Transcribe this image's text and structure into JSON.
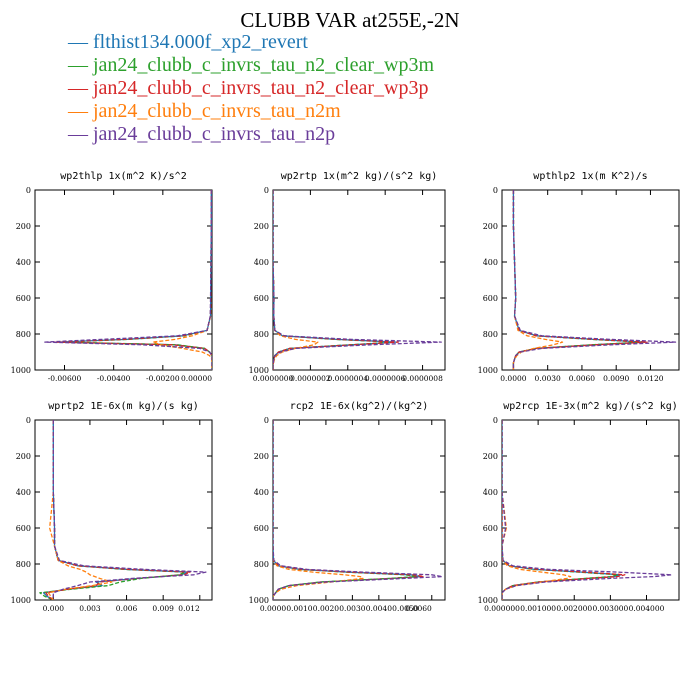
{
  "title": "CLUBB VAR at255E,-2N",
  "legend": [
    {
      "label": "flthist134.000f_xp2_revert",
      "color": "#1f77b4"
    },
    {
      "label": "jan24_clubb_c_invrs_tau_n2_clear_wp3m",
      "color": "#2ca02c"
    },
    {
      "label": "jan24_clubb_c_invrs_tau_n2_clear_wp3p",
      "color": "#d62728"
    },
    {
      "label": "jan24_clubb_c_invrs_tau_n2m",
      "color": "#ff7f0e"
    },
    {
      "label": "jan24_clubb_c_invrs_tau_n2p",
      "color": "#6a3d9a"
    }
  ],
  "chart_data": [
    {
      "type": "line",
      "title": "wp2thlp  1x(m^2 K)/s^2",
      "xlim": [
        -0.0072,
        0.0
      ],
      "xticks": [
        -0.006,
        -0.004,
        -0.002,
        0.0
      ],
      "xtick_labels": [
        "-0.00600",
        "-0.00400",
        "-0.00200",
        "0.00000"
      ],
      "ylim": [
        1000,
        0
      ],
      "yticks": [
        0,
        200,
        400,
        600,
        800,
        1000
      ],
      "y": [
        0,
        200,
        400,
        600,
        700,
        780,
        810,
        830,
        845,
        860,
        880,
        900,
        920,
        940,
        960,
        980,
        1000
      ],
      "series": [
        {
          "color": "#1f77b4",
          "values": [
            -3e-05,
            -3e-05,
            -4e-05,
            -5e-05,
            -6e-05,
            -0.0002,
            -0.0012,
            -0.0035,
            -0.0063,
            -0.0015,
            -0.0003,
            -0.0001,
            0,
            0,
            0,
            0,
            0
          ]
        },
        {
          "color": "#2ca02c",
          "values": [
            -3e-05,
            -3e-05,
            -4e-05,
            -5e-05,
            -6e-05,
            -0.0002,
            -0.0011,
            -0.0034,
            -0.0061,
            -0.0014,
            -0.0003,
            -0.0001,
            0,
            0,
            0,
            0,
            0
          ]
        },
        {
          "color": "#d62728",
          "values": [
            -3e-05,
            -3e-05,
            -4e-05,
            -5e-05,
            -6e-05,
            -0.0002,
            -0.0012,
            -0.0036,
            -0.0064,
            -0.0016,
            -0.0003,
            -0.0001,
            0,
            0,
            0,
            0,
            0
          ]
        },
        {
          "color": "#ff7f0e",
          "values": [
            -3e-05,
            -3e-05,
            -4e-05,
            -5e-05,
            -6e-05,
            -0.0002,
            -0.0008,
            -0.0015,
            -0.0024,
            -0.0021,
            -0.0012,
            -0.0004,
            -0.0001,
            0,
            0,
            0,
            0
          ]
        },
        {
          "color": "#6a3d9a",
          "values": [
            -3e-05,
            -3e-05,
            -4e-05,
            -6e-05,
            -7e-05,
            -0.0002,
            -0.0014,
            -0.0045,
            -0.0068,
            -0.0028,
            -0.0005,
            -0.0001,
            0,
            0,
            0,
            0,
            0
          ]
        }
      ]
    },
    {
      "type": "line",
      "title": "wp2rtp  1x(m^2 kg)/(s^2 kg)",
      "xlim": [
        0,
        9.2e-07
      ],
      "xticks": [
        0,
        2e-07,
        4e-07,
        6e-07,
        8e-07
      ],
      "xtick_labels": [
        "0.0000000",
        "0.0000002",
        "0.0000004",
        "0.0000006",
        "0.0000008"
      ],
      "ylim": [
        1000,
        0
      ],
      "yticks": [
        0,
        200,
        400,
        600,
        800,
        1000
      ],
      "y": [
        0,
        200,
        400,
        600,
        700,
        780,
        810,
        830,
        845,
        860,
        880,
        900,
        920,
        940,
        960,
        980,
        1000
      ],
      "series": [
        {
          "color": "#1f77b4",
          "values": [
            0,
            0,
            0,
            5e-09,
            4e-09,
            1e-08,
            5e-08,
            3.4e-07,
            6.6e-07,
            4.2e-07,
            9e-08,
            3e-08,
            1e-08,
            5e-09,
            2e-09,
            0,
            0
          ]
        },
        {
          "color": "#2ca02c",
          "values": [
            0,
            0,
            0,
            5e-09,
            4e-09,
            1e-08,
            5e-08,
            3.3e-07,
            6.4e-07,
            4.1e-07,
            9e-08,
            3e-08,
            1e-08,
            5e-09,
            2e-09,
            0,
            0
          ]
        },
        {
          "color": "#d62728",
          "values": [
            0,
            0,
            0,
            5e-09,
            4e-09,
            1e-08,
            5e-08,
            3.5e-07,
            6.7e-07,
            4.3e-07,
            9e-08,
            3e-08,
            1e-08,
            5e-09,
            2e-09,
            0,
            0
          ]
        },
        {
          "color": "#ff7f0e",
          "values": [
            0,
            0,
            0,
            5e-09,
            4e-09,
            1e-08,
            4e-08,
            1.2e-07,
            2.4e-07,
            2.2e-07,
            1.2e-07,
            5e-08,
            2e-08,
            8e-09,
            3e-09,
            0,
            0
          ]
        },
        {
          "color": "#6a3d9a",
          "values": [
            0,
            0,
            0,
            5e-09,
            4e-09,
            1e-08,
            6e-08,
            4.2e-07,
            9e-07,
            5.2e-07,
            1.2e-07,
            4e-08,
            1e-08,
            5e-09,
            2e-09,
            0,
            0
          ]
        }
      ]
    },
    {
      "type": "line",
      "title": "wpthlp2  1x(m K^2)/s",
      "xlim": [
        -0.001,
        0.0145
      ],
      "xticks": [
        0,
        0.003,
        0.006,
        0.009,
        0.012
      ],
      "xtick_labels": [
        "0.0000",
        "0.0030",
        "0.0060",
        "0.0090",
        "0.0120"
      ],
      "ylim": [
        1000,
        0
      ],
      "yticks": [
        0,
        200,
        400,
        600,
        800,
        1000
      ],
      "y": [
        0,
        200,
        400,
        600,
        700,
        780,
        810,
        830,
        845,
        860,
        880,
        900,
        920,
        940,
        960,
        980,
        1000
      ],
      "series": [
        {
          "color": "#1f77b4",
          "values": [
            0,
            0,
            0.0001,
            0.0002,
            0.0001,
            0.0005,
            0.002,
            0.007,
            0.0115,
            0.007,
            0.002,
            0.0005,
            0.0002,
            0.0001,
            0,
            0,
            0
          ]
        },
        {
          "color": "#2ca02c",
          "values": [
            0,
            0,
            0.0001,
            0.0002,
            0.0001,
            0.0005,
            0.002,
            0.0068,
            0.0113,
            0.0068,
            0.002,
            0.0005,
            0.0002,
            0.0001,
            0,
            0,
            0
          ]
        },
        {
          "color": "#d62728",
          "values": [
            0,
            0,
            0.0001,
            0.0002,
            0.0001,
            0.0005,
            0.002,
            0.0072,
            0.0117,
            0.0072,
            0.002,
            0.0005,
            0.0002,
            0.0001,
            0,
            0,
            0
          ]
        },
        {
          "color": "#ff7f0e",
          "values": [
            0,
            0,
            0.0001,
            0.0002,
            0.0001,
            0.0004,
            0.0012,
            0.0028,
            0.0043,
            0.0035,
            0.0018,
            0.0007,
            0.0003,
            0.0001,
            0,
            0,
            0
          ]
        },
        {
          "color": "#6a3d9a",
          "values": [
            0,
            0,
            0.0001,
            0.0002,
            0.0001,
            0.0006,
            0.0025,
            0.0085,
            0.0142,
            0.0085,
            0.0025,
            0.0006,
            0.0002,
            0.0001,
            0,
            0,
            0
          ]
        }
      ]
    },
    {
      "type": "line",
      "title": "wprtp2  1E-6x(m kg)/(s kg)",
      "xlim": [
        -0.0015,
        0.013
      ],
      "xticks": [
        0,
        0.003,
        0.006,
        0.009,
        0.012
      ],
      "xtick_labels": [
        "0.000",
        "0.003",
        "0.006",
        "0.009",
        "0.012"
      ],
      "ylim": [
        1000,
        0
      ],
      "yticks": [
        0,
        200,
        400,
        600,
        800,
        1000
      ],
      "y": [
        0,
        200,
        400,
        600,
        700,
        780,
        810,
        830,
        845,
        860,
        880,
        900,
        920,
        940,
        960,
        980,
        1000
      ],
      "series": [
        {
          "color": "#1f77b4",
          "values": [
            0,
            0,
            0,
            0.0001,
            0.0001,
            0.0004,
            0.002,
            0.006,
            0.011,
            0.0105,
            0.007,
            0.0035,
            0.004,
            0.0012,
            -0.0008,
            -0.0005,
            0
          ]
        },
        {
          "color": "#2ca02c",
          "values": [
            0,
            0,
            0,
            0.0001,
            0.0001,
            0.0004,
            0.002,
            0.0058,
            0.0108,
            0.0103,
            0.0072,
            0.0055,
            0.0045,
            0.0015,
            -0.0011,
            -0.0007,
            0
          ]
        },
        {
          "color": "#d62728",
          "values": [
            0,
            0,
            0,
            0.0001,
            0.0001,
            0.0004,
            0.002,
            0.0062,
            0.0112,
            0.0107,
            0.0068,
            0.0038,
            0.0035,
            0.0012,
            -0.0006,
            -0.0004,
            0
          ]
        },
        {
          "color": "#ff7f0e",
          "values": [
            0,
            0,
            0,
            -0.0003,
            0.0001,
            0.0004,
            0.0012,
            0.0022,
            0.0027,
            0.003,
            0.0038,
            0.0048,
            0.0032,
            0.001,
            -0.0004,
            -0.0002,
            0
          ]
        },
        {
          "color": "#6a3d9a",
          "values": [
            0,
            0,
            0,
            0.0001,
            0.0001,
            0.0005,
            0.0025,
            0.0075,
            0.0125,
            0.0115,
            0.0065,
            0.003,
            0.002,
            0.0008,
            0,
            0,
            0
          ]
        }
      ]
    },
    {
      "type": "line",
      "title": "rcp2  1E-6x(kg^2)/(kg^2)",
      "xlim": [
        0,
        0.0065
      ],
      "xticks": [
        0,
        0.001,
        0.002,
        0.003,
        0.004,
        0.005,
        0.006
      ],
      "xtick_labels": [
        "0.0000",
        "0.0010",
        "0.0020",
        "0.0030",
        "0.0040",
        "0.0050",
        "0.0060"
      ],
      "ylim": [
        1000,
        0
      ],
      "yticks": [
        0,
        200,
        400,
        600,
        800,
        1000
      ],
      "y": [
        0,
        200,
        400,
        600,
        700,
        780,
        810,
        830,
        845,
        860,
        870,
        880,
        900,
        920,
        940,
        960,
        980,
        1000
      ],
      "series": [
        {
          "color": "#1f77b4",
          "values": [
            0,
            0,
            0,
            0,
            0,
            2e-05,
            0.0002,
            0.001,
            0.0028,
            0.0052,
            0.0056,
            0.0045,
            0.0018,
            0.0006,
            0.0002,
            0.0001,
            0,
            0
          ]
        },
        {
          "color": "#2ca02c",
          "values": [
            0,
            0,
            0,
            0,
            0,
            2e-05,
            0.0002,
            0.001,
            0.0027,
            0.005,
            0.0054,
            0.0044,
            0.0018,
            0.0006,
            0.0002,
            0.0001,
            0,
            0
          ]
        },
        {
          "color": "#d62728",
          "values": [
            0,
            0,
            0,
            0,
            0,
            2e-05,
            0.0002,
            0.0011,
            0.0029,
            0.0053,
            0.0057,
            0.0046,
            0.0019,
            0.0006,
            0.0002,
            0.0001,
            0,
            0
          ]
        },
        {
          "color": "#ff7f0e",
          "values": [
            0,
            0,
            0,
            0,
            0,
            2e-05,
            0.00015,
            0.0006,
            0.0015,
            0.0027,
            0.0033,
            0.0034,
            0.0022,
            0.0009,
            0.0003,
            0.0001,
            0,
            0
          ]
        },
        {
          "color": "#6a3d9a",
          "values": [
            0,
            0,
            0,
            0,
            0,
            3e-05,
            0.0003,
            0.0013,
            0.0034,
            0.006,
            0.0064,
            0.005,
            0.002,
            0.0006,
            0.0002,
            0.0001,
            0,
            0
          ]
        }
      ]
    },
    {
      "type": "line",
      "title": "wp2rcp  1E-3x(m^2 kg)/(s^2 kg)",
      "xlim": [
        0,
        0.0049
      ],
      "xticks": [
        0,
        0.001,
        0.002,
        0.003,
        0.004
      ],
      "xtick_labels": [
        "0.000000",
        "0.001000",
        "0.002000",
        "0.003000",
        "0.004000"
      ],
      "ylim": [
        1000,
        0
      ],
      "yticks": [
        0,
        200,
        400,
        600,
        800,
        1000
      ],
      "y": [
        0,
        200,
        400,
        600,
        700,
        780,
        810,
        830,
        845,
        860,
        870,
        880,
        900,
        920,
        940,
        960,
        980,
        1000
      ],
      "series": [
        {
          "color": "#1f77b4",
          "values": [
            0,
            0,
            0,
            0,
            0,
            2e-05,
            0.0002,
            0.0009,
            0.0022,
            0.0033,
            0.0031,
            0.0024,
            0.001,
            0.0003,
            0.0001,
            0,
            0,
            0
          ]
        },
        {
          "color": "#2ca02c",
          "values": [
            0,
            0,
            0,
            0,
            0,
            2e-05,
            0.0002,
            0.0009,
            0.0021,
            0.0032,
            0.003,
            0.0023,
            0.001,
            0.0003,
            0.0001,
            0,
            0,
            0
          ]
        },
        {
          "color": "#d62728",
          "values": [
            0,
            0,
            0,
            0,
            0,
            2e-05,
            0.0002,
            0.001,
            0.0023,
            0.0034,
            0.0032,
            0.0024,
            0.001,
            0.0003,
            0.0001,
            0,
            0,
            0
          ]
        },
        {
          "color": "#ff7f0e",
          "values": [
            0,
            0,
            0,
            0.00012,
            0,
            2e-05,
            0.00015,
            0.0005,
            0.0011,
            0.0017,
            0.0019,
            0.0018,
            0.0011,
            0.0004,
            0.0001,
            0,
            0,
            0
          ]
        },
        {
          "color": "#6a3d9a",
          "values": [
            0,
            0,
            0,
            0.0001,
            0,
            3e-05,
            0.0003,
            0.0013,
            0.0032,
            0.0047,
            0.0042,
            0.003,
            0.0012,
            0.0004,
            0.0001,
            0,
            0,
            0
          ]
        }
      ]
    }
  ]
}
